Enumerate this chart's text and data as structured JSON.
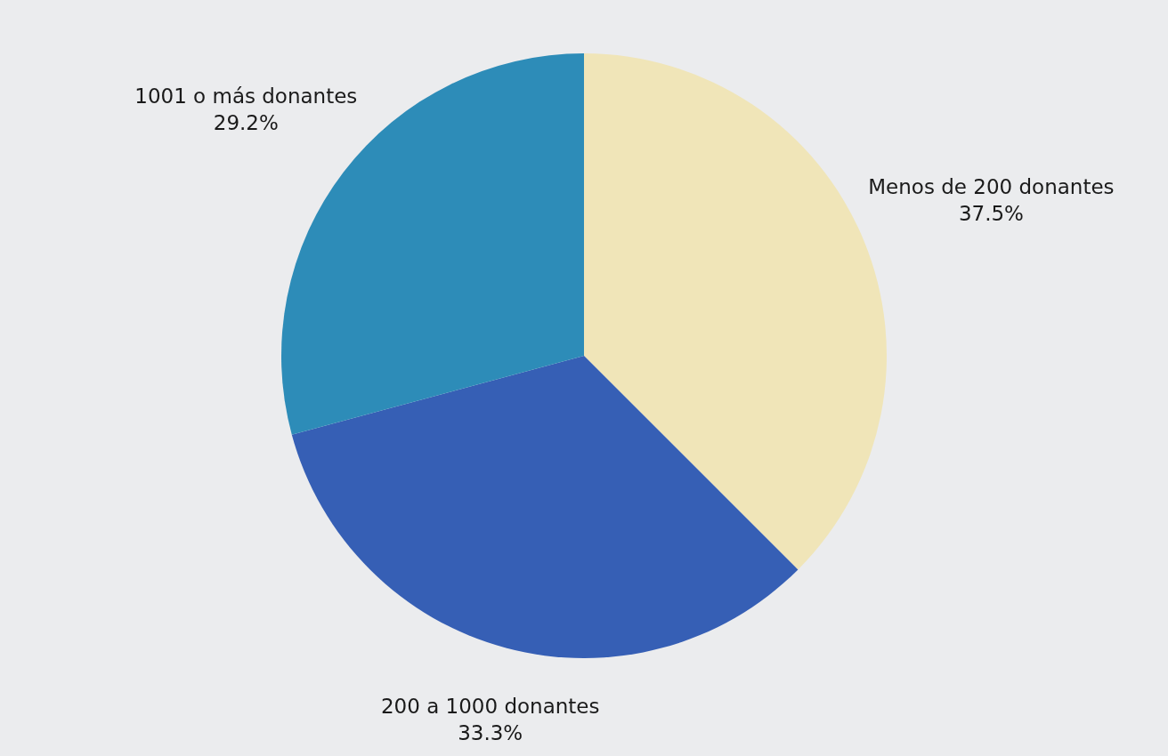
{
  "chart_data": {
    "type": "pie",
    "categories": [
      "Menos de 200 donantes",
      "200 a 1000 donantes",
      "1001 o más donantes"
    ],
    "values": [
      37.5,
      33.3,
      29.2
    ],
    "value_labels": [
      "37.5%",
      "33.3%",
      "29.2%"
    ],
    "colors": [
      "#f0e5b8",
      "#365fb5",
      "#2d8cb8"
    ]
  }
}
